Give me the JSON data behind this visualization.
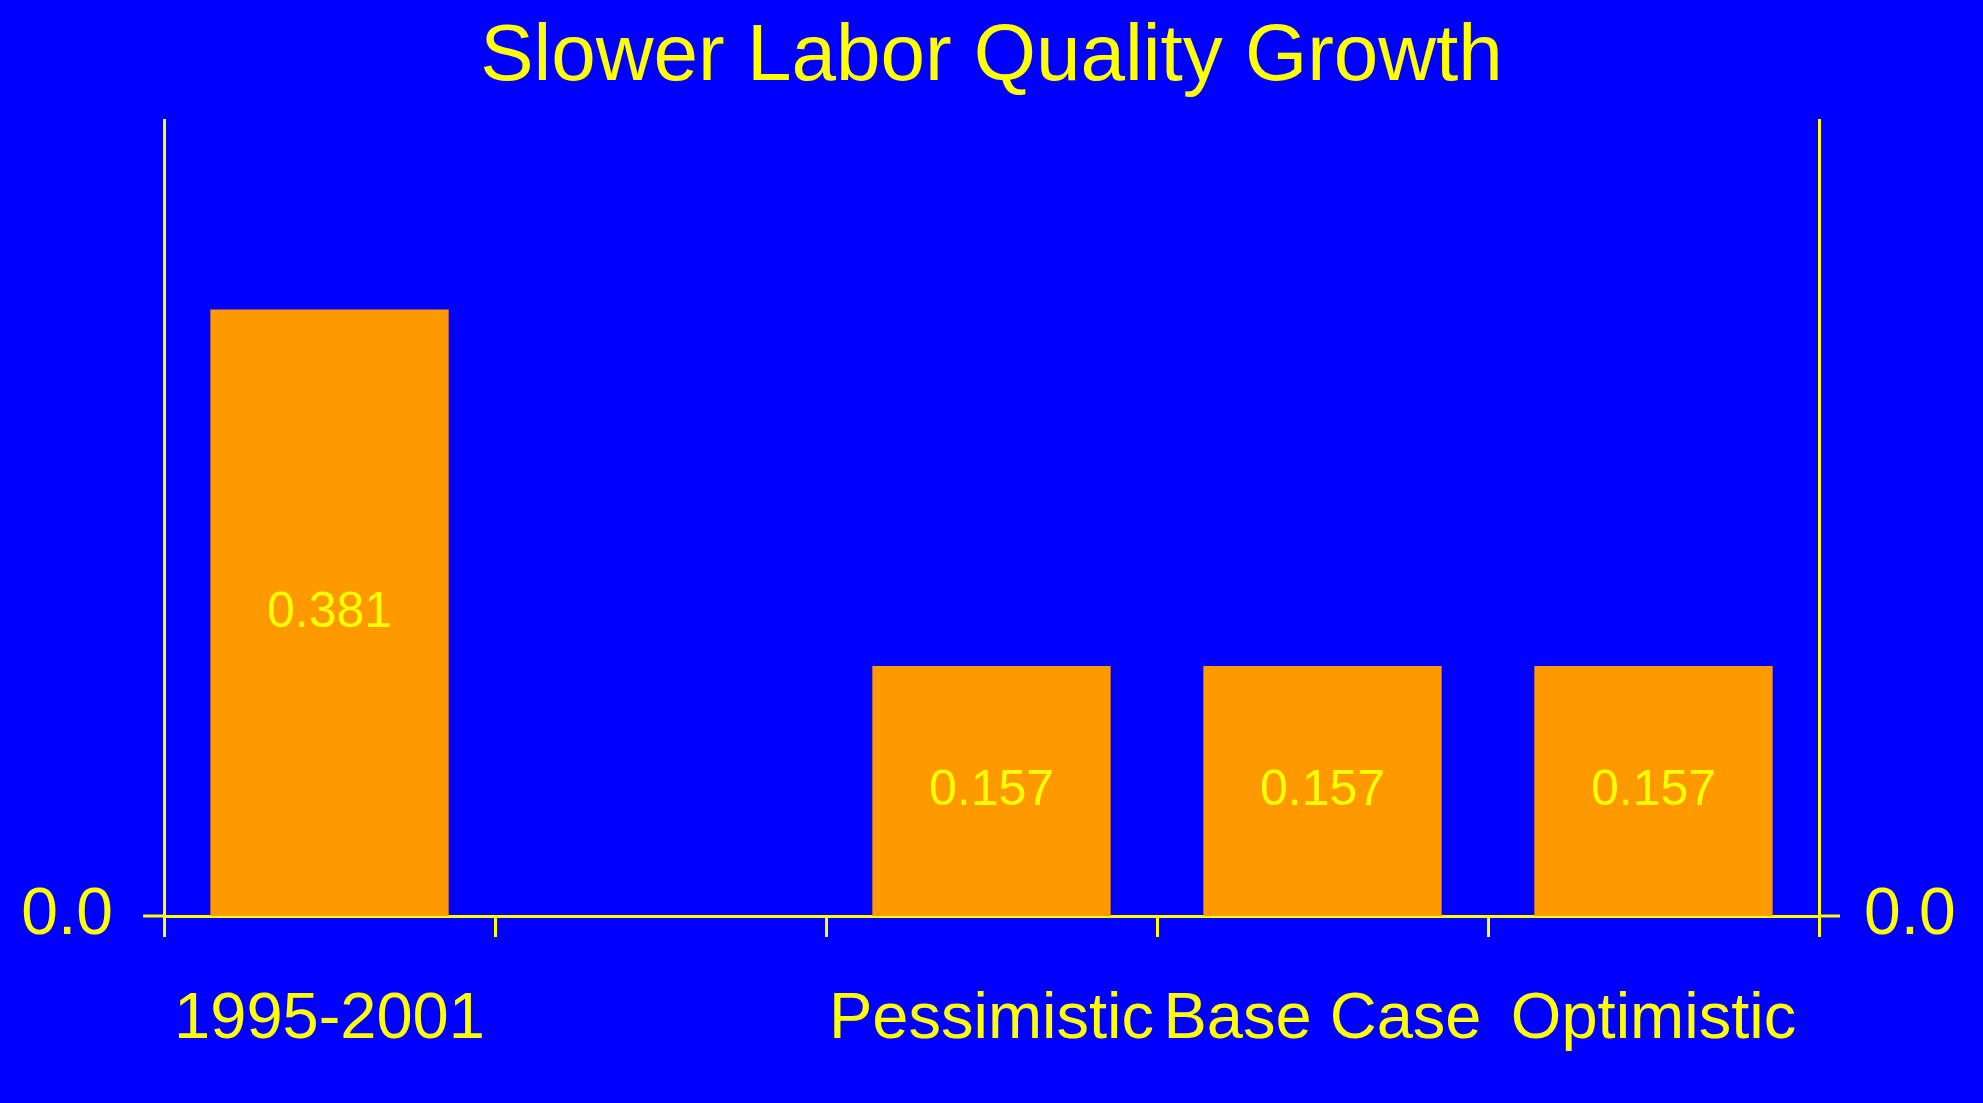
{
  "chart_data": {
    "type": "bar",
    "title": "Slower Labor Quality Growth",
    "categories": [
      "1995-2001",
      null,
      "Pessimistic",
      "Base Case",
      "Optimistic"
    ],
    "values": [
      0.381,
      null,
      0.157,
      0.157,
      0.157
    ],
    "color": "#ff9900",
    "ylim": [
      0,
      0.5
    ],
    "annotations": [
      "0.0",
      "0.0"
    ],
    "data_labels": true
  }
}
